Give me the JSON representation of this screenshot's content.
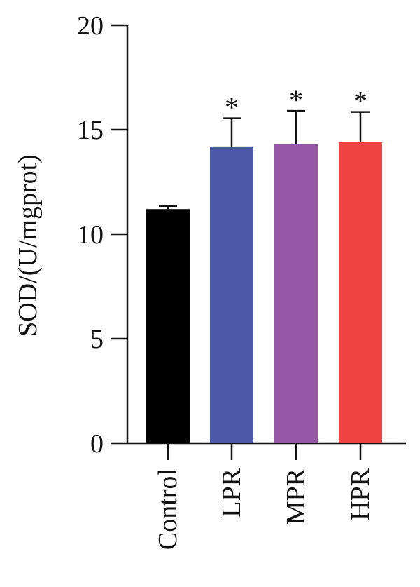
{
  "chart_data": {
    "type": "bar",
    "title": "",
    "xlabel": "",
    "ylabel": "SOD/(U/mgprot)",
    "ylim": [
      0,
      20
    ],
    "yticks": [
      0,
      5,
      10,
      15,
      20
    ],
    "categories": [
      "Control",
      "LPR",
      "MPR",
      "HPR"
    ],
    "values": [
      11.2,
      14.2,
      14.3,
      14.4
    ],
    "errors": [
      0.15,
      1.35,
      1.6,
      1.45
    ],
    "significance": [
      "",
      "*",
      "*",
      "*"
    ],
    "colors": [
      "#000000",
      "#4a5aa8",
      "#9657a6",
      "#f04444"
    ],
    "grid": false,
    "legend": "none"
  }
}
